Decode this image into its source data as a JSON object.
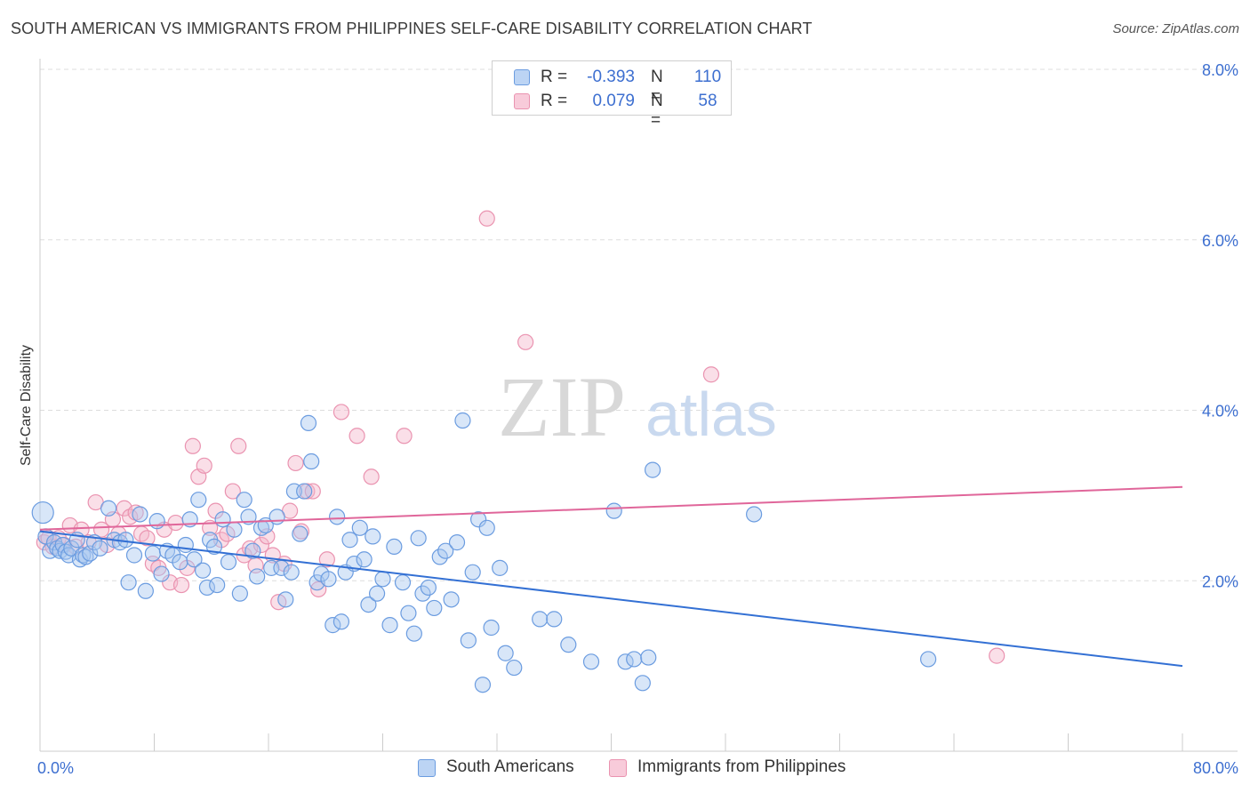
{
  "title": "SOUTH AMERICAN VS IMMIGRANTS FROM PHILIPPINES SELF-CARE DISABILITY CORRELATION CHART",
  "source": "Source: ZipAtlas.com",
  "watermark": {
    "zip": "ZIP",
    "atlas": "atlas"
  },
  "legend": {
    "rows": [
      {
        "r_label": "R =",
        "r_value": "-0.393",
        "n_label": "N =",
        "n_value": "110"
      },
      {
        "r_label": "R =",
        "r_value": "0.079",
        "n_label": "N =",
        "n_value": "58"
      }
    ]
  },
  "bottom_legend": [
    "South Americans",
    "Immigrants from Philippines"
  ],
  "colors": {
    "blue_fill": "#a8c8f0",
    "blue_stroke": "#6b9ce0",
    "blue_line": "#3370d4",
    "pink_fill": "#f5b8cc",
    "pink_stroke": "#ea93b0",
    "pink_line": "#e0669a",
    "axis_text": "#3d6fd0",
    "grid": "#dddddd"
  },
  "chart_data": {
    "type": "scatter",
    "title": "SOUTH AMERICAN VS IMMIGRANTS FROM PHILIPPINES SELF-CARE DISABILITY CORRELATION CHART",
    "xlabel": "",
    "ylabel": "Self-Care Disability",
    "xlim": [
      0,
      80
    ],
    "ylim": [
      0,
      8
    ],
    "x_tick_labels": [
      "0.0%",
      "80.0%"
    ],
    "y_ticks": [
      2,
      4,
      6,
      8
    ],
    "y_tick_labels": [
      "2.0%",
      "4.0%",
      "6.0%",
      "8.0%"
    ],
    "grid": "horizontal dashed",
    "legend_position": "top-center",
    "series": [
      {
        "name": "South Americans",
        "color": "#6b9ce0",
        "trend": {
          "x0": 0,
          "y0": 2.58,
          "x1": 80,
          "y1": 1.0
        },
        "points": [
          [
            0.2,
            2.8
          ],
          [
            0.4,
            2.52
          ],
          [
            0.7,
            2.35
          ],
          [
            1.0,
            2.45
          ],
          [
            1.2,
            2.38
          ],
          [
            1.4,
            2.35
          ],
          [
            1.6,
            2.42
          ],
          [
            1.8,
            2.34
          ],
          [
            2.0,
            2.3
          ],
          [
            2.2,
            2.38
          ],
          [
            2.6,
            2.48
          ],
          [
            2.8,
            2.25
          ],
          [
            3.0,
            2.3
          ],
          [
            3.2,
            2.28
          ],
          [
            3.5,
            2.32
          ],
          [
            3.8,
            2.45
          ],
          [
            4.2,
            2.38
          ],
          [
            4.8,
            2.85
          ],
          [
            5.2,
            2.48
          ],
          [
            5.6,
            2.45
          ],
          [
            6.0,
            2.48
          ],
          [
            6.2,
            1.98
          ],
          [
            6.6,
            2.3
          ],
          [
            7.0,
            2.78
          ],
          [
            7.4,
            1.88
          ],
          [
            7.9,
            2.32
          ],
          [
            8.2,
            2.7
          ],
          [
            8.5,
            2.08
          ],
          [
            8.9,
            2.35
          ],
          [
            9.3,
            2.3
          ],
          [
            9.8,
            2.22
          ],
          [
            10.2,
            2.42
          ],
          [
            10.5,
            2.72
          ],
          [
            10.8,
            2.25
          ],
          [
            11.1,
            2.95
          ],
          [
            11.4,
            2.12
          ],
          [
            11.7,
            1.92
          ],
          [
            11.9,
            2.48
          ],
          [
            12.2,
            2.4
          ],
          [
            12.4,
            1.95
          ],
          [
            12.8,
            2.72
          ],
          [
            13.2,
            2.22
          ],
          [
            13.6,
            2.6
          ],
          [
            14.0,
            1.85
          ],
          [
            14.3,
            2.95
          ],
          [
            14.6,
            2.75
          ],
          [
            14.9,
            2.35
          ],
          [
            15.2,
            2.05
          ],
          [
            15.5,
            2.62
          ],
          [
            15.8,
            2.65
          ],
          [
            16.2,
            2.15
          ],
          [
            16.6,
            2.75
          ],
          [
            16.9,
            2.15
          ],
          [
            17.2,
            1.78
          ],
          [
            17.6,
            2.1
          ],
          [
            17.8,
            3.05
          ],
          [
            18.2,
            2.55
          ],
          [
            18.5,
            3.05
          ],
          [
            18.8,
            3.85
          ],
          [
            19.0,
            3.4
          ],
          [
            19.4,
            1.98
          ],
          [
            19.7,
            2.08
          ],
          [
            20.2,
            2.02
          ],
          [
            20.5,
            1.48
          ],
          [
            20.8,
            2.75
          ],
          [
            21.1,
            1.52
          ],
          [
            21.4,
            2.1
          ],
          [
            21.7,
            2.48
          ],
          [
            22.0,
            2.2
          ],
          [
            22.4,
            2.62
          ],
          [
            22.7,
            2.25
          ],
          [
            23.0,
            1.72
          ],
          [
            23.3,
            2.52
          ],
          [
            23.6,
            1.85
          ],
          [
            24.0,
            2.02
          ],
          [
            24.5,
            1.48
          ],
          [
            24.8,
            2.4
          ],
          [
            25.4,
            1.98
          ],
          [
            25.8,
            1.62
          ],
          [
            26.2,
            1.38
          ],
          [
            26.5,
            2.5
          ],
          [
            26.8,
            1.85
          ],
          [
            27.2,
            1.92
          ],
          [
            27.6,
            1.68
          ],
          [
            28.0,
            2.28
          ],
          [
            28.4,
            2.35
          ],
          [
            28.8,
            1.78
          ],
          [
            29.2,
            2.45
          ],
          [
            29.6,
            3.88
          ],
          [
            30.0,
            1.3
          ],
          [
            30.3,
            2.1
          ],
          [
            30.7,
            2.72
          ],
          [
            31.0,
            0.78
          ],
          [
            31.3,
            2.62
          ],
          [
            31.6,
            1.45
          ],
          [
            32.2,
            2.15
          ],
          [
            32.6,
            1.15
          ],
          [
            33.2,
            0.98
          ],
          [
            35.0,
            1.55
          ],
          [
            36.0,
            1.55
          ],
          [
            37.0,
            1.25
          ],
          [
            38.6,
            1.05
          ],
          [
            40.2,
            2.82
          ],
          [
            41.0,
            1.05
          ],
          [
            41.6,
            1.08
          ],
          [
            42.2,
            0.8
          ],
          [
            42.6,
            1.1
          ],
          [
            42.9,
            3.3
          ],
          [
            50.0,
            2.78
          ],
          [
            62.2,
            1.08
          ]
        ]
      },
      {
        "name": "Immigrants from Philippines",
        "color": "#ea93b0",
        "trend": {
          "x0": 0,
          "y0": 2.6,
          "x1": 80,
          "y1": 3.1
        },
        "points": [
          [
            0.3,
            2.45
          ],
          [
            0.6,
            2.5
          ],
          [
            0.9,
            2.4
          ],
          [
            1.3,
            2.5
          ],
          [
            1.7,
            2.42
          ],
          [
            2.1,
            2.65
          ],
          [
            2.5,
            2.4
          ],
          [
            2.9,
            2.6
          ],
          [
            3.4,
            2.45
          ],
          [
            3.9,
            2.92
          ],
          [
            4.3,
            2.6
          ],
          [
            4.7,
            2.42
          ],
          [
            5.1,
            2.72
          ],
          [
            5.5,
            2.55
          ],
          [
            5.9,
            2.85
          ],
          [
            6.3,
            2.75
          ],
          [
            6.7,
            2.8
          ],
          [
            7.1,
            2.55
          ],
          [
            7.5,
            2.5
          ],
          [
            7.9,
            2.2
          ],
          [
            8.3,
            2.15
          ],
          [
            8.7,
            2.6
          ],
          [
            9.1,
            1.98
          ],
          [
            9.5,
            2.68
          ],
          [
            9.9,
            1.95
          ],
          [
            10.3,
            2.15
          ],
          [
            10.7,
            3.58
          ],
          [
            11.1,
            3.22
          ],
          [
            11.5,
            3.35
          ],
          [
            11.9,
            2.62
          ],
          [
            12.3,
            2.82
          ],
          [
            12.7,
            2.48
          ],
          [
            13.1,
            2.55
          ],
          [
            13.5,
            3.05
          ],
          [
            13.9,
            3.58
          ],
          [
            14.3,
            2.3
          ],
          [
            14.7,
            2.38
          ],
          [
            15.1,
            2.18
          ],
          [
            15.5,
            2.42
          ],
          [
            15.9,
            2.52
          ],
          [
            16.3,
            2.3
          ],
          [
            16.7,
            1.75
          ],
          [
            17.1,
            2.2
          ],
          [
            17.5,
            2.82
          ],
          [
            17.9,
            3.38
          ],
          [
            18.3,
            2.58
          ],
          [
            18.7,
            3.05
          ],
          [
            19.1,
            3.05
          ],
          [
            19.5,
            1.9
          ],
          [
            20.1,
            2.25
          ],
          [
            21.1,
            3.98
          ],
          [
            22.2,
            3.7
          ],
          [
            23.2,
            3.22
          ],
          [
            25.5,
            3.7
          ],
          [
            31.3,
            6.25
          ],
          [
            34.0,
            4.8
          ],
          [
            47.0,
            4.42
          ],
          [
            67.0,
            1.12
          ]
        ]
      }
    ]
  }
}
